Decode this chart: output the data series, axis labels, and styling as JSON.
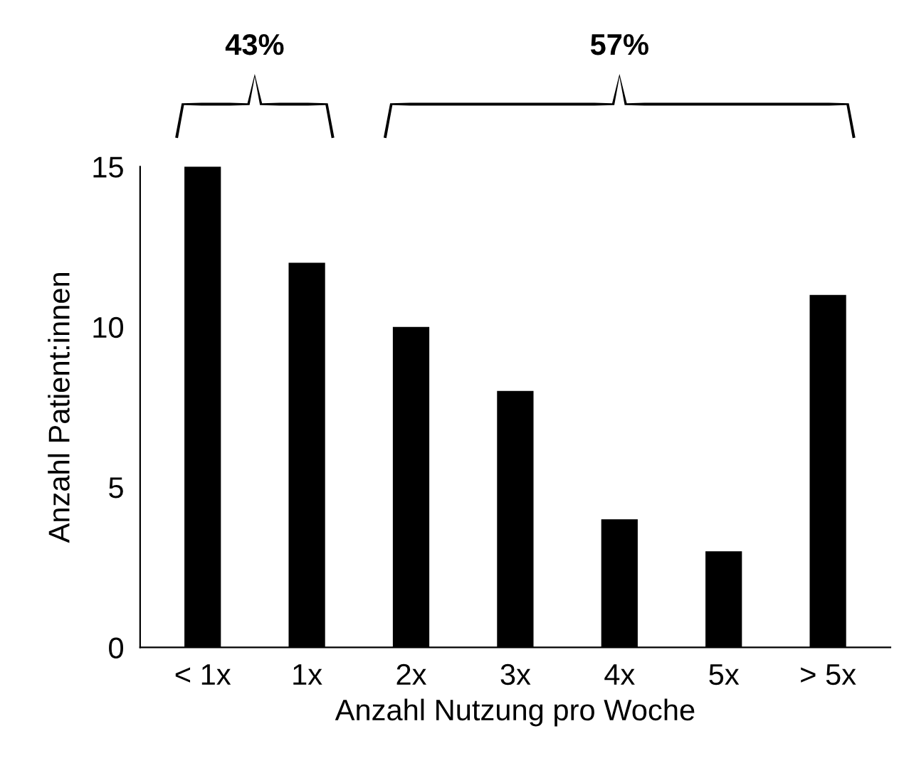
{
  "chart_data": {
    "type": "bar",
    "xlabel": "Anzahl Nutzung pro Woche",
    "ylabel": "Anzahl Patient:innen",
    "categories": [
      "< 1x",
      "1x",
      "2x",
      "3x",
      "4x",
      "5x",
      "> 5x"
    ],
    "values": [
      15,
      12,
      10,
      8,
      4,
      3,
      11
    ],
    "color": "#000000",
    "ylim": [
      0,
      15
    ],
    "yticks": [
      0,
      5,
      10,
      15
    ],
    "grid": false,
    "legend": false,
    "annotations": [
      "43%",
      "57%"
    ]
  }
}
